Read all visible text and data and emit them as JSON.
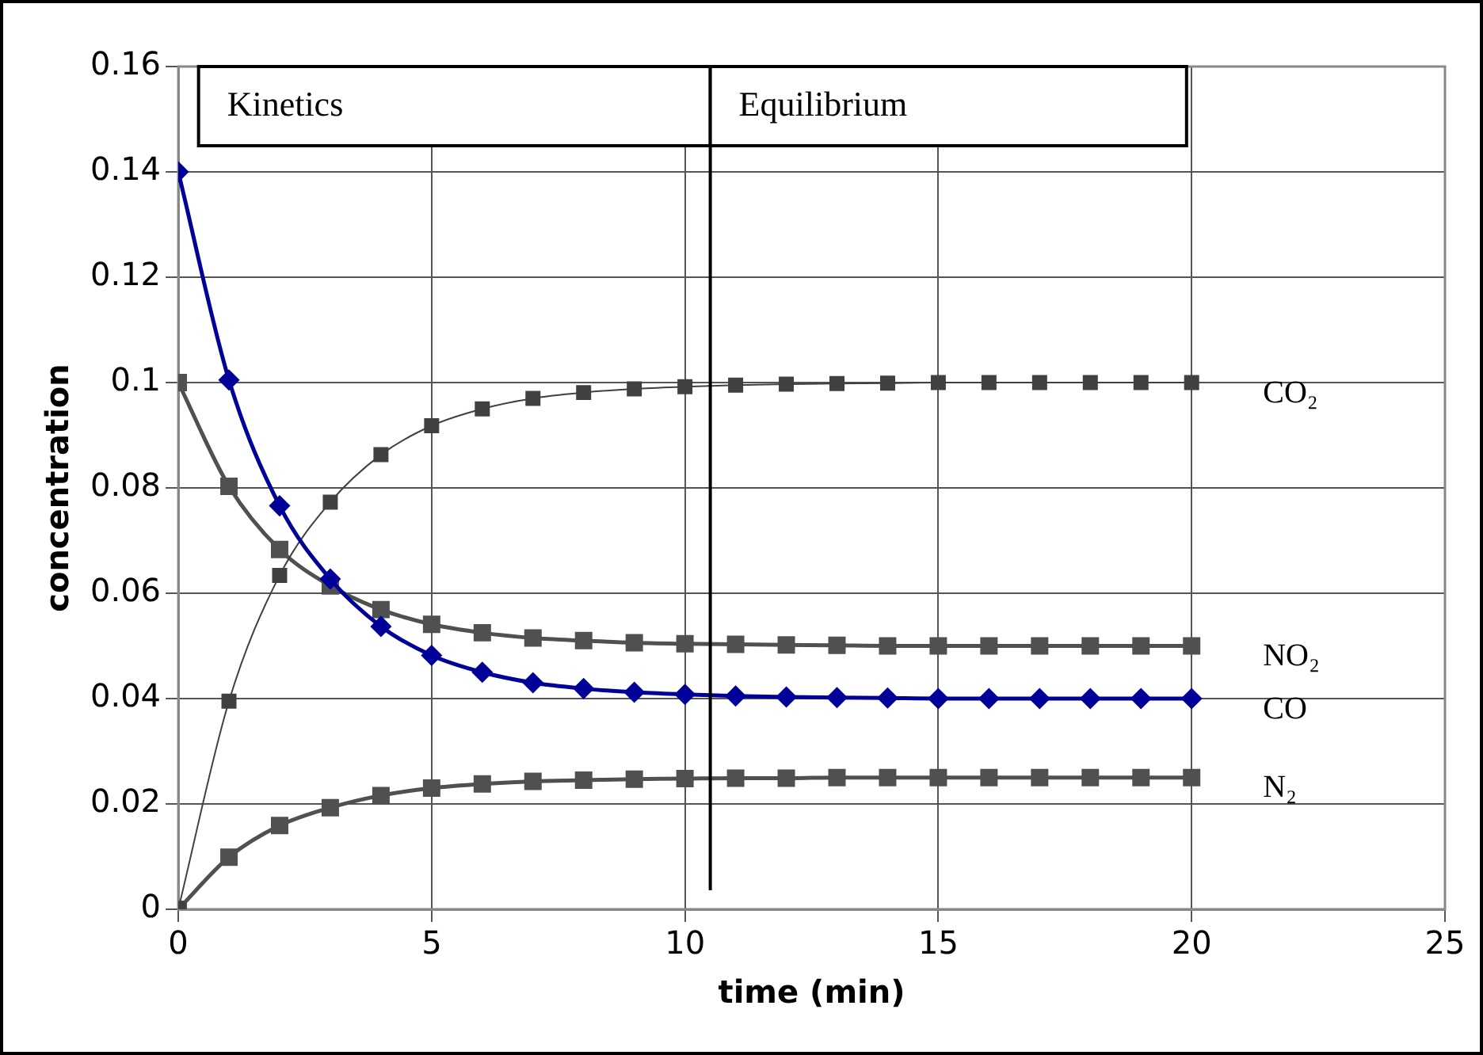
{
  "chart_data": {
    "type": "line",
    "xlabel": "time (min)",
    "ylabel": "concentration",
    "x": [
      0,
      1,
      2,
      3,
      4,
      5,
      6,
      7,
      8,
      9,
      10,
      11,
      12,
      13,
      14,
      15,
      16,
      17,
      18,
      19,
      20
    ],
    "series": [
      {
        "name": "CO₂",
        "color": "#404040",
        "marker": "square",
        "values": [
          0,
          0.0395,
          0.0634,
          0.0773,
          0.0863,
          0.0918,
          0.095,
          0.097,
          0.0981,
          0.0988,
          0.0992,
          0.0995,
          0.0997,
          0.0998,
          0.0999,
          0.1,
          0.1,
          0.1,
          0.1,
          0.1,
          0.1
        ]
      },
      {
        "name": "NO₂",
        "color": "#505050",
        "marker": "square",
        "values": [
          0.1,
          0.0803,
          0.0683,
          0.0614,
          0.0569,
          0.0541,
          0.0525,
          0.0515,
          0.051,
          0.0506,
          0.0504,
          0.0503,
          0.0502,
          0.0501,
          0.05,
          0.05,
          0.05,
          0.05,
          0.05,
          0.05,
          0.05
        ]
      },
      {
        "name": "CO",
        "color": "#000099",
        "marker": "diamond",
        "values": [
          0.14,
          0.1005,
          0.0766,
          0.0627,
          0.0537,
          0.0482,
          0.045,
          0.043,
          0.0419,
          0.0412,
          0.0408,
          0.0405,
          0.0403,
          0.0402,
          0.0401,
          0.04,
          0.04,
          0.04,
          0.04,
          0.04,
          0.04
        ]
      },
      {
        "name": "N₂",
        "color": "#505050",
        "marker": "square",
        "values": [
          0,
          0.0099,
          0.0159,
          0.0193,
          0.0216,
          0.023,
          0.0238,
          0.0243,
          0.0245,
          0.0247,
          0.0248,
          0.0249,
          0.0249,
          0.025,
          0.025,
          0.025,
          0.025,
          0.025,
          0.025,
          0.025,
          0.025
        ]
      }
    ],
    "xlim": [
      0,
      25
    ],
    "xticks": [
      0,
      5,
      10,
      15,
      20,
      25
    ],
    "ylim": [
      0,
      0.16
    ],
    "yticks": [
      0,
      0.02,
      0.04,
      0.06,
      0.08,
      0.1,
      0.12,
      0.14,
      0.16
    ],
    "grid": true,
    "legend": false,
    "line_style": "solid",
    "ref_lines": [
      {
        "axis": "x",
        "value": 10.5,
        "color": "#000000"
      }
    ],
    "bands": [
      {
        "axis": "x",
        "from": 0.4,
        "to": 10.5,
        "label": "Kinetics"
      },
      {
        "axis": "x",
        "from": 10.5,
        "to": 19.9,
        "label": "Equilibrium"
      }
    ]
  }
}
